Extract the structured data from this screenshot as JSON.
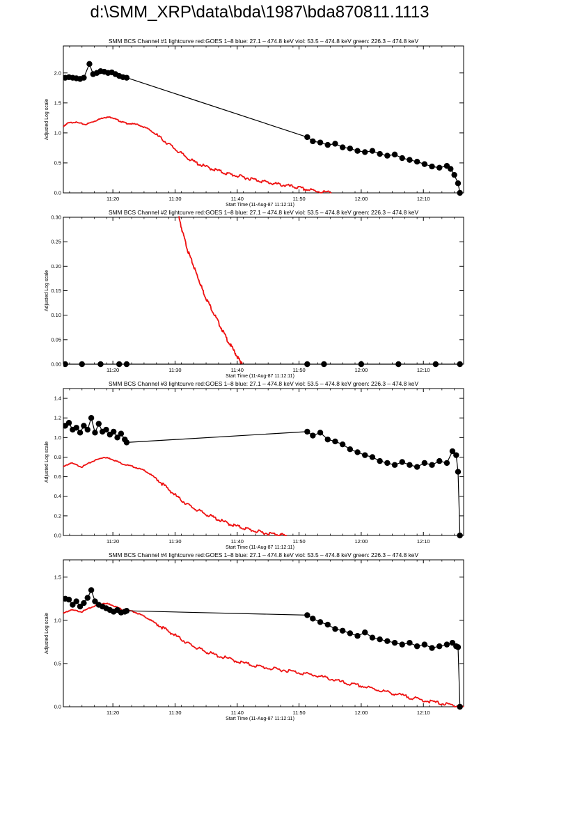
{
  "page_title": "d:\\SMM_XRP\\data\\bda\\1987\\bda870811.1113",
  "colors": {
    "goes": "#ee1111",
    "bcs": "#000000",
    "axis": "#000000"
  },
  "chart_data": [
    {
      "type": "line",
      "title": "SMM BCS Channel #1 lightcurve  red:GOES 1–8  blue: 27.1 – 474.8 keV  viol: 53.5 – 474.8 keV  green: 226.3 – 474.8 keV",
      "xlabel": "Start Time (11-Aug-87 11:12:11)",
      "ylabel": "Adjusted Log scale",
      "xlim": [
        11.2,
        12.275
      ],
      "ylim": [
        0,
        2.45
      ],
      "x_ticks": [
        11.333,
        11.5,
        11.667,
        11.833,
        12.0,
        12.167
      ],
      "x_tick_labels": [
        "11:20",
        "11:30",
        "11:40",
        "11:50",
        "12:00",
        "12:10"
      ],
      "y_ticks": [
        0.0,
        0.5,
        1.0,
        1.5,
        2.0
      ],
      "y_tick_labels": [
        "0.0",
        "0.5",
        "1.0",
        "1.5",
        "2.0"
      ],
      "series": [
        {
          "name": "GOES 1-8",
          "color": "#ee1111",
          "x": [
            11.2,
            11.21,
            11.23,
            11.26,
            11.285,
            11.31,
            11.33,
            11.35,
            11.37,
            11.4,
            11.43,
            11.46,
            11.49,
            11.52,
            11.55,
            11.58,
            11.61,
            11.64,
            11.67,
            11.7,
            11.73,
            11.76,
            11.79,
            11.82,
            11.85,
            11.88,
            11.92
          ],
          "y": [
            1.1,
            1.16,
            1.18,
            1.14,
            1.2,
            1.26,
            1.26,
            1.2,
            1.16,
            1.14,
            1.06,
            0.92,
            0.78,
            0.64,
            0.52,
            0.44,
            0.38,
            0.32,
            0.28,
            0.24,
            0.2,
            0.16,
            0.13,
            0.1,
            0.06,
            0.03,
            0.0
          ]
        },
        {
          "name": "BCS channel 1",
          "color": "#000000",
          "x": [
            11.205,
            11.215,
            11.225,
            11.235,
            11.245,
            11.255,
            11.27,
            11.28,
            11.29,
            11.3,
            11.31,
            11.32,
            11.33,
            11.34,
            11.35,
            11.36,
            11.37,
            11.855,
            11.87,
            11.89,
            11.91,
            11.93,
            11.95,
            11.97,
            11.99,
            12.01,
            12.03,
            12.05,
            12.07,
            12.09,
            12.11,
            12.13,
            12.15,
            12.17,
            12.19,
            12.21,
            12.23,
            12.24,
            12.25,
            12.26,
            12.265
          ],
          "y": [
            1.92,
            1.93,
            1.92,
            1.91,
            1.9,
            1.92,
            2.15,
            1.98,
            2.0,
            2.03,
            2.02,
            2.0,
            2.01,
            1.98,
            1.95,
            1.93,
            1.92,
            0.93,
            0.86,
            0.84,
            0.8,
            0.82,
            0.76,
            0.74,
            0.7,
            0.68,
            0.7,
            0.65,
            0.62,
            0.64,
            0.58,
            0.55,
            0.52,
            0.48,
            0.44,
            0.42,
            0.45,
            0.4,
            0.3,
            0.16,
            0.0
          ]
        }
      ]
    },
    {
      "type": "line",
      "title": "SMM BCS Channel #2 lightcurve  red:GOES 1–8  blue: 27.1 – 474.8 keV  viol: 53.5 – 474.8 keV  green: 226.3 – 474.8 keV",
      "xlabel": "Start Time (11-Aug-87 11:12:11)",
      "ylabel": "Adjusted Log scale",
      "xlim": [
        11.2,
        12.275
      ],
      "ylim": [
        0,
        0.3
      ],
      "x_ticks": [
        11.333,
        11.5,
        11.667,
        11.833,
        12.0,
        12.167
      ],
      "x_tick_labels": [
        "11:20",
        "11:30",
        "11:40",
        "11:50",
        "12:00",
        "12:10"
      ],
      "y_ticks": [
        0.0,
        0.05,
        0.1,
        0.15,
        0.2,
        0.25,
        0.3
      ],
      "y_tick_labels": [
        "0.00",
        "0.05",
        "0.10",
        "0.15",
        "0.20",
        "0.25",
        "0.30"
      ],
      "series": [
        {
          "name": "GOES 1-8",
          "color": "#ee1111",
          "x": [
            11.51,
            11.52,
            11.535,
            11.55,
            11.565,
            11.58,
            11.6,
            11.62,
            11.64,
            11.66,
            11.675,
            11.68
          ],
          "y": [
            0.3,
            0.27,
            0.23,
            0.2,
            0.17,
            0.14,
            0.11,
            0.08,
            0.05,
            0.025,
            0.005,
            0.0
          ]
        },
        {
          "name": "BCS channel 2",
          "color": "#000000",
          "x": [
            11.205,
            11.25,
            11.3,
            11.35,
            11.37,
            11.855,
            11.9,
            12.0,
            12.1,
            12.2,
            12.265
          ],
          "y": [
            0.0,
            0.0,
            0.0,
            0.0,
            0.0,
            0.0,
            0.0,
            0.0,
            0.0,
            0.0,
            0.0
          ]
        }
      ]
    },
    {
      "type": "line",
      "title": "SMM BCS Channel #3 lightcurve  red:GOES 1–8  blue: 27.1 – 474.8 keV  viol: 53.5 – 474.8 keV  green: 226.3 – 474.8 keV",
      "xlabel": "Start Time (11-Aug-87 11:12:11)",
      "ylabel": "Adjusted Log scale",
      "xlim": [
        11.2,
        12.275
      ],
      "ylim": [
        0,
        1.5
      ],
      "x_ticks": [
        11.333,
        11.5,
        11.667,
        11.833,
        12.0,
        12.167
      ],
      "x_tick_labels": [
        "11:20",
        "11:30",
        "11:40",
        "11:50",
        "12:00",
        "12:10"
      ],
      "y_ticks": [
        0.0,
        0.2,
        0.4,
        0.6,
        0.8,
        1.0,
        1.2,
        1.4
      ],
      "y_tick_labels": [
        "0.0",
        "0.2",
        "0.4",
        "0.6",
        "0.8",
        "1.0",
        "1.2",
        "1.4"
      ],
      "series": [
        {
          "name": "GOES 1-8",
          "color": "#ee1111",
          "x": [
            11.2,
            11.22,
            11.25,
            11.28,
            11.31,
            11.33,
            11.36,
            11.39,
            11.42,
            11.45,
            11.48,
            11.51,
            11.54,
            11.57,
            11.6,
            11.63,
            11.66,
            11.69,
            11.72,
            11.75,
            11.78,
            11.8
          ],
          "y": [
            0.7,
            0.74,
            0.7,
            0.76,
            0.8,
            0.78,
            0.73,
            0.7,
            0.66,
            0.58,
            0.48,
            0.38,
            0.3,
            0.24,
            0.19,
            0.14,
            0.1,
            0.07,
            0.04,
            0.02,
            0.01,
            0.0
          ]
        },
        {
          "name": "BCS channel 3",
          "color": "#000000",
          "x": [
            11.205,
            11.215,
            11.225,
            11.235,
            11.245,
            11.255,
            11.265,
            11.275,
            11.285,
            11.295,
            11.305,
            11.315,
            11.325,
            11.335,
            11.345,
            11.355,
            11.365,
            11.37,
            11.855,
            11.87,
            11.89,
            11.91,
            11.93,
            11.95,
            11.97,
            11.99,
            12.01,
            12.03,
            12.05,
            12.07,
            12.09,
            12.11,
            12.13,
            12.15,
            12.17,
            12.19,
            12.21,
            12.23,
            12.245,
            12.255,
            12.26,
            12.265
          ],
          "y": [
            1.12,
            1.15,
            1.08,
            1.1,
            1.05,
            1.12,
            1.08,
            1.2,
            1.05,
            1.14,
            1.06,
            1.08,
            1.03,
            1.06,
            1.0,
            1.04,
            0.98,
            0.95,
            1.06,
            1.02,
            1.05,
            0.98,
            0.96,
            0.93,
            0.88,
            0.85,
            0.82,
            0.8,
            0.76,
            0.74,
            0.72,
            0.75,
            0.72,
            0.7,
            0.74,
            0.72,
            0.76,
            0.74,
            0.86,
            0.82,
            0.65,
            0.0
          ]
        }
      ]
    },
    {
      "type": "line",
      "title": "SMM BCS Channel #4 lightcurve  red:GOES 1–8  blue: 27.1 – 474.8 keV  viol: 53.5 – 474.8 keV  green: 226.3 – 474.8 keV",
      "xlabel": "Start Time (11-Aug-87 11:12:11)",
      "ylabel": "Adjusted Log scale",
      "xlim": [
        11.2,
        12.275
      ],
      "ylim": [
        0,
        1.7
      ],
      "x_ticks": [
        11.333,
        11.5,
        11.667,
        11.833,
        12.0,
        12.167
      ],
      "x_tick_labels": [
        "11:20",
        "11:30",
        "11:40",
        "11:50",
        "12:00",
        "12:10"
      ],
      "y_ticks": [
        0.0,
        0.5,
        1.0,
        1.5
      ],
      "y_tick_labels": [
        "0.0",
        "0.5",
        "1.0",
        "1.5"
      ],
      "series": [
        {
          "name": "GOES 1-8",
          "color": "#ee1111",
          "x": [
            11.2,
            11.22,
            11.25,
            11.28,
            11.31,
            11.33,
            11.36,
            11.39,
            11.42,
            11.45,
            11.48,
            11.51,
            11.54,
            11.57,
            11.6,
            11.64,
            11.68,
            11.72,
            11.76,
            11.8,
            11.84,
            11.88,
            11.92,
            11.96,
            12.0,
            12.04,
            12.08,
            12.12,
            12.16,
            12.2,
            12.24,
            12.275
          ],
          "y": [
            1.08,
            1.12,
            1.1,
            1.16,
            1.2,
            1.18,
            1.12,
            1.1,
            1.04,
            0.96,
            0.88,
            0.8,
            0.72,
            0.66,
            0.61,
            0.56,
            0.51,
            0.47,
            0.44,
            0.42,
            0.39,
            0.36,
            0.32,
            0.27,
            0.24,
            0.2,
            0.16,
            0.12,
            0.08,
            0.05,
            0.02,
            0.0
          ]
        },
        {
          "name": "BCS channel 4",
          "color": "#000000",
          "x": [
            11.205,
            11.215,
            11.225,
            11.235,
            11.245,
            11.255,
            11.265,
            11.275,
            11.285,
            11.295,
            11.305,
            11.315,
            11.325,
            11.335,
            11.345,
            11.355,
            11.365,
            11.37,
            11.855,
            11.87,
            11.89,
            11.91,
            11.93,
            11.95,
            11.97,
            11.99,
            12.01,
            12.03,
            12.05,
            12.07,
            12.09,
            12.11,
            12.13,
            12.15,
            12.17,
            12.19,
            12.21,
            12.23,
            12.245,
            12.255,
            12.26,
            12.265
          ],
          "y": [
            1.25,
            1.24,
            1.18,
            1.22,
            1.16,
            1.2,
            1.26,
            1.35,
            1.22,
            1.18,
            1.16,
            1.14,
            1.12,
            1.1,
            1.12,
            1.09,
            1.1,
            1.11,
            1.06,
            1.02,
            0.98,
            0.95,
            0.9,
            0.88,
            0.85,
            0.82,
            0.86,
            0.8,
            0.78,
            0.76,
            0.74,
            0.72,
            0.74,
            0.7,
            0.72,
            0.68,
            0.7,
            0.72,
            0.74,
            0.7,
            0.69,
            0.0
          ]
        }
      ]
    }
  ]
}
